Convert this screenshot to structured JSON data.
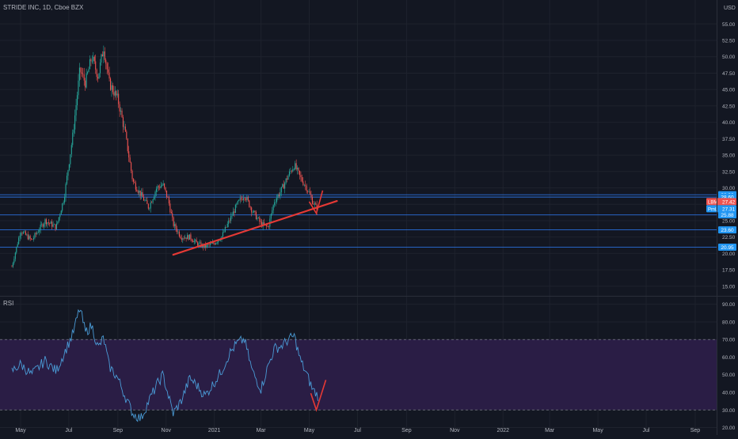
{
  "header": {
    "symbol_title": "STRIDE INC, 1D, Cboe BZX",
    "currency": "USD"
  },
  "colors": {
    "background": "#131722",
    "grid": "#1e222d",
    "axis_text": "#b2b5be",
    "up": "#26a69a",
    "down": "#ef5350",
    "level_line": "#2a6fdb",
    "level_label": "#2196f3",
    "trendline": "#e53935",
    "rsi_line": "#4a9bd6",
    "rsi_band": "#2a1d45",
    "rsi_band_border": "#787b86"
  },
  "chart_data": [
    {
      "type": "candlestick",
      "name": "price",
      "title": "STRIDE INC, 1D, Cboe BZX",
      "ylim": [
        14.5,
        56.0
      ],
      "y_ticks": [
        "55.00",
        "52.50",
        "50.00",
        "47.50",
        "45.00",
        "42.50",
        "40.00",
        "37.50",
        "35.00",
        "32.50",
        "30.00",
        "27.50",
        "25.00",
        "22.50",
        "20.00",
        "17.50",
        "15.00"
      ],
      "x_ticks": [
        "May",
        "Jul",
        "Sep",
        "Nov",
        "2021",
        "Mar",
        "May",
        "Jul",
        "Sep",
        "Nov",
        "2022",
        "Mar",
        "May",
        "Jul",
        "Sep"
      ],
      "series_points": [
        [
          "2020-04-20",
          18.0
        ],
        [
          "2020-05-01",
          23.5
        ],
        [
          "2020-05-15",
          22.0
        ],
        [
          "2020-06-01",
          25.0
        ],
        [
          "2020-06-15",
          24.0
        ],
        [
          "2020-06-25",
          28.5
        ],
        [
          "2020-07-06",
          38.0
        ],
        [
          "2020-07-15",
          48.0
        ],
        [
          "2020-07-22",
          46.0
        ],
        [
          "2020-07-30",
          50.0
        ],
        [
          "2020-08-07",
          47.0
        ],
        [
          "2020-08-14",
          51.5
        ],
        [
          "2020-08-21",
          46.0
        ],
        [
          "2020-09-01",
          43.5
        ],
        [
          "2020-09-10",
          38.5
        ],
        [
          "2020-09-20",
          31.0
        ],
        [
          "2020-09-30",
          29.0
        ],
        [
          "2020-10-10",
          27.0
        ],
        [
          "2020-10-20",
          30.0
        ],
        [
          "2020-10-28",
          30.5
        ],
        [
          "2020-11-04",
          28.0
        ],
        [
          "2020-11-10",
          24.5
        ],
        [
          "2020-11-20",
          22.5
        ],
        [
          "2020-12-01",
          22.5
        ],
        [
          "2020-12-10",
          21.5
        ],
        [
          "2020-12-20",
          21.0
        ],
        [
          "2020-12-31",
          21.5
        ],
        [
          "2021-01-10",
          22.5
        ],
        [
          "2021-01-20",
          25.0
        ],
        [
          "2021-01-30",
          27.5
        ],
        [
          "2021-02-08",
          29.0
        ],
        [
          "2021-02-18",
          26.5
        ],
        [
          "2021-03-01",
          24.5
        ],
        [
          "2021-03-10",
          24.0
        ],
        [
          "2021-03-18",
          28.0
        ],
        [
          "2021-03-26",
          29.5
        ],
        [
          "2021-04-05",
          32.0
        ],
        [
          "2021-04-12",
          33.5
        ],
        [
          "2021-04-20",
          31.5
        ],
        [
          "2021-04-28",
          30.0
        ],
        [
          "2021-05-05",
          28.0
        ],
        [
          "2021-05-12",
          26.5
        ]
      ],
      "horizontal_levels": [
        {
          "label": "28.96",
          "value": 28.96
        },
        {
          "label": "28.60",
          "value": 28.6
        },
        {
          "label": "25.88",
          "value": 25.88
        },
        {
          "label": "23.60",
          "value": 23.6
        },
        {
          "label": "20.95",
          "value": 20.95
        }
      ],
      "price_labels": [
        {
          "tag": "LBM",
          "value_text": "27.42",
          "value": 27.42
        },
        {
          "tag": "PmL",
          "value_text": "27.31",
          "value": 27.31
        }
      ],
      "trendline": [
        [
          "2020-11-10",
          19.8
        ],
        [
          "2021-06-05",
          28.0
        ]
      ],
      "check_mark": [
        [
          "2021-05-01",
          27.9
        ],
        [
          "2021-05-10",
          26.1
        ],
        [
          "2021-05-18",
          29.6
        ]
      ]
    },
    {
      "type": "line",
      "name": "rsi",
      "title": "RSI",
      "ylim": [
        18.0,
        93.0
      ],
      "y_ticks": [
        "90.00",
        "80.00",
        "70.00",
        "60.00",
        "50.00",
        "40.00",
        "30.00",
        "20.00"
      ],
      "band": [
        30,
        70
      ],
      "series_points": [
        [
          "2020-04-20",
          52
        ],
        [
          "2020-05-01",
          56
        ],
        [
          "2020-05-15",
          50
        ],
        [
          "2020-06-01",
          58
        ],
        [
          "2020-06-15",
          52
        ],
        [
          "2020-06-25",
          62
        ],
        [
          "2020-07-06",
          73
        ],
        [
          "2020-07-15",
          88
        ],
        [
          "2020-07-22",
          74
        ],
        [
          "2020-07-30",
          78
        ],
        [
          "2020-08-07",
          65
        ],
        [
          "2020-08-14",
          71
        ],
        [
          "2020-08-21",
          55
        ],
        [
          "2020-09-01",
          48
        ],
        [
          "2020-09-10",
          38
        ],
        [
          "2020-09-20",
          28
        ],
        [
          "2020-09-30",
          25
        ],
        [
          "2020-10-10",
          35
        ],
        [
          "2020-10-20",
          44
        ],
        [
          "2020-10-28",
          50
        ],
        [
          "2020-11-04",
          38
        ],
        [
          "2020-11-10",
          28
        ],
        [
          "2020-11-20",
          35
        ],
        [
          "2020-12-01",
          48
        ],
        [
          "2020-12-10",
          44
        ],
        [
          "2020-12-20",
          38
        ],
        [
          "2020-12-31",
          45
        ],
        [
          "2021-01-10",
          52
        ],
        [
          "2021-01-20",
          62
        ],
        [
          "2021-01-30",
          68
        ],
        [
          "2021-02-08",
          70
        ],
        [
          "2021-02-18",
          52
        ],
        [
          "2021-03-01",
          42
        ],
        [
          "2021-03-10",
          55
        ],
        [
          "2021-03-18",
          65
        ],
        [
          "2021-03-26",
          66
        ],
        [
          "2021-04-05",
          70
        ],
        [
          "2021-04-12",
          72
        ],
        [
          "2021-04-20",
          58
        ],
        [
          "2021-04-28",
          50
        ],
        [
          "2021-05-05",
          42
        ],
        [
          "2021-05-12",
          38
        ]
      ],
      "check_mark": [
        [
          "2021-05-03",
          39.5
        ],
        [
          "2021-05-10",
          30.0
        ],
        [
          "2021-05-22",
          47.0
        ]
      ]
    }
  ]
}
